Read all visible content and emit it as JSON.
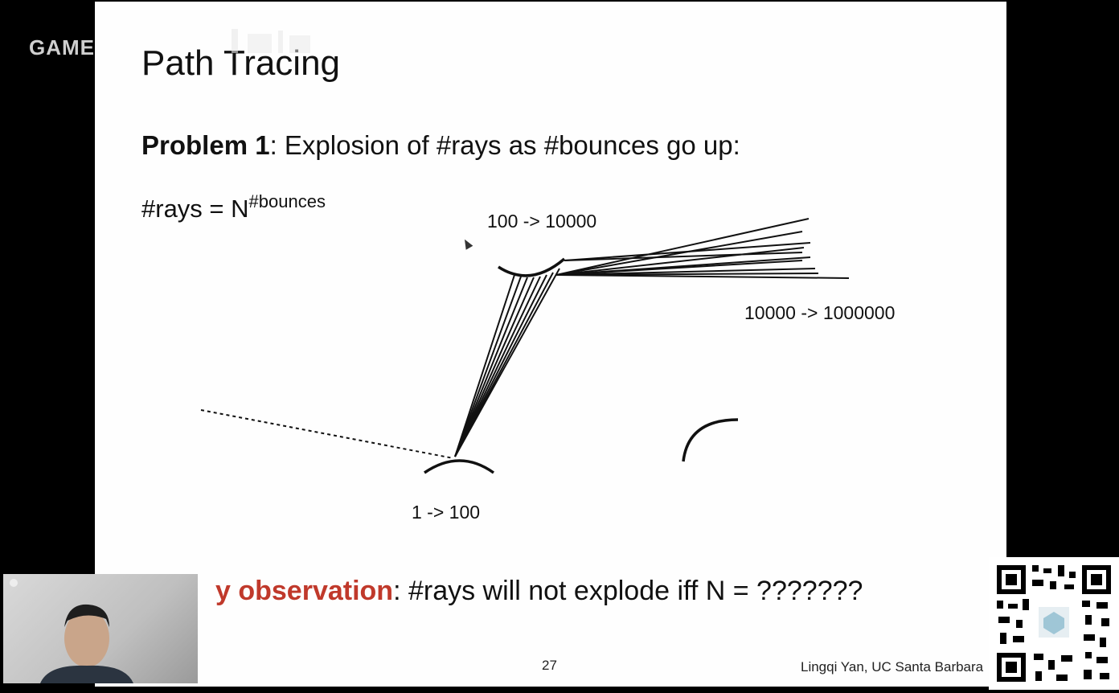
{
  "watermark": {
    "text": "GAME"
  },
  "slide": {
    "title": "Path Tracing",
    "problem": {
      "label": "Problem 1",
      "text": ": Explosion of #rays as #bounces go up:"
    },
    "formula": {
      "base": "#rays = N",
      "exponent": "#bounces"
    },
    "labels": {
      "first_bounce": "1 -> 100",
      "second_bounce": "100 -> 10000",
      "third_bounce": "10000 -> 1000000"
    },
    "observation": {
      "key": "y observation",
      "text": ": #rays will not explode iff N = ???????"
    },
    "page_number": "27",
    "credit": "Lingqi Yan, UC Santa Barbara"
  },
  "colors": {
    "accent": "#c0392b",
    "text": "#111111",
    "background": "#000000"
  }
}
